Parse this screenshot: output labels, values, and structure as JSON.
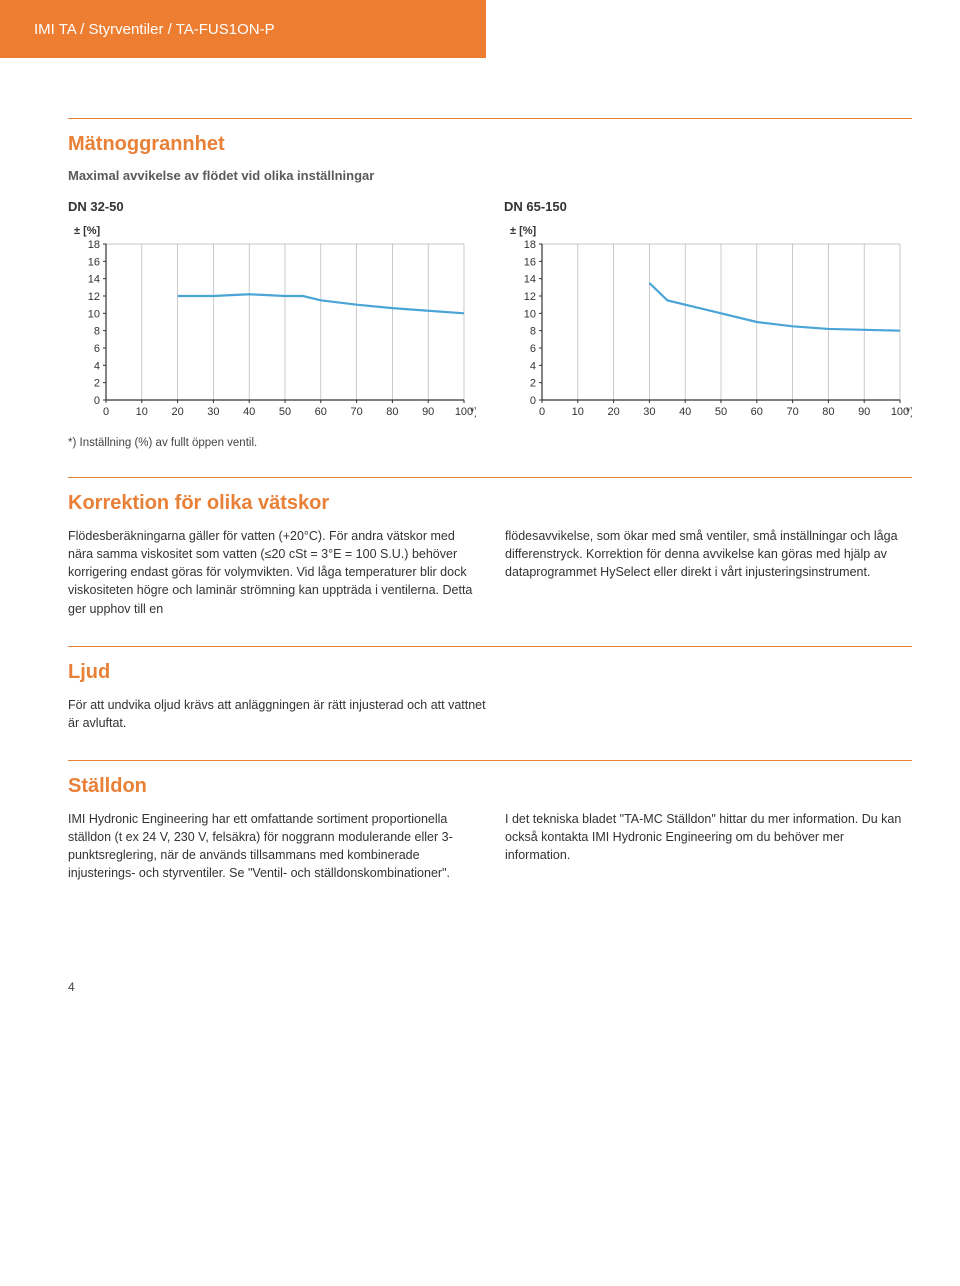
{
  "header": {
    "breadcrumb": "IMI TA / Styrventiler / TA-FUS1ON-P"
  },
  "section_matnoggrannhet": {
    "title": "Mätnoggrannhet",
    "subtitle": "Maximal avvikelse av flödet vid olika inställningar",
    "footnote": "*) Inställning (%) av fullt öppen ventil.",
    "chart1": {
      "type": "line",
      "label": "DN 32-50",
      "y_label": "±  [%]",
      "x_ticks": [
        "0",
        "10",
        "20",
        "30",
        "40",
        "50",
        "60",
        "70",
        "80",
        "90",
        "100",
        "*)"
      ],
      "y_ticks": [
        0,
        2,
        4,
        6,
        8,
        10,
        12,
        14,
        16,
        18
      ],
      "ylim": [
        0,
        18
      ],
      "xlim": [
        0,
        100
      ],
      "line_color": "#4aa5d6",
      "line_width": 2.2,
      "grid_color": "#b5b5b5",
      "axis_color": "#333333",
      "tick_fontsize": 11,
      "background_color": "#ffffff",
      "data": [
        {
          "x": 20,
          "y": 12
        },
        {
          "x": 30,
          "y": 12
        },
        {
          "x": 40,
          "y": 12.2
        },
        {
          "x": 50,
          "y": 12
        },
        {
          "x": 55,
          "y": 12
        },
        {
          "x": 60,
          "y": 11.5
        },
        {
          "x": 70,
          "y": 11
        },
        {
          "x": 80,
          "y": 10.6
        },
        {
          "x": 90,
          "y": 10.3
        },
        {
          "x": 100,
          "y": 10
        }
      ]
    },
    "chart2": {
      "type": "line",
      "label": "DN 65-150",
      "y_label": "±  [%]",
      "x_ticks": [
        "0",
        "10",
        "20",
        "30",
        "40",
        "50",
        "60",
        "70",
        "80",
        "90",
        "100",
        "*)"
      ],
      "y_ticks": [
        0,
        2,
        4,
        6,
        8,
        10,
        12,
        14,
        16,
        18
      ],
      "ylim": [
        0,
        18
      ],
      "xlim": [
        0,
        100
      ],
      "line_color": "#4aa5d6",
      "line_width": 2.2,
      "grid_color": "#b5b5b5",
      "axis_color": "#333333",
      "tick_fontsize": 11,
      "background_color": "#ffffff",
      "data": [
        {
          "x": 30,
          "y": 13.5
        },
        {
          "x": 35,
          "y": 11.5
        },
        {
          "x": 40,
          "y": 11
        },
        {
          "x": 50,
          "y": 10
        },
        {
          "x": 60,
          "y": 9
        },
        {
          "x": 70,
          "y": 8.5
        },
        {
          "x": 80,
          "y": 8.2
        },
        {
          "x": 90,
          "y": 8.1
        },
        {
          "x": 100,
          "y": 8
        }
      ]
    }
  },
  "section_korrektion": {
    "title": "Korrektion för olika vätskor",
    "col1": "Flödesberäkningarna gäller för vatten (+20°C). För andra vätskor med nära samma viskositet som vatten (≤20 cSt = 3°E = 100 S.U.) behöver korrigering endast göras för volymvikten. Vid låga temperaturer blir dock viskositeten högre och laminär strömning kan uppträda i ventilerna. Detta ger upphov till en",
    "col2": "flödesavvikelse, som ökar med små ventiler, små inställningar och låga differenstryck. Korrektion för denna avvikelse kan göras med hjälp av dataprogrammet HySelect eller direkt i vårt injusteringsinstrument."
  },
  "section_ljud": {
    "title": "Ljud",
    "body": "För att undvika oljud krävs att anläggningen är rätt injusterad och att vattnet är avluftat."
  },
  "section_stalldon": {
    "title": "Ställdon",
    "col1": "IMI Hydronic Engineering har ett omfattande sortiment proportionella ställdon (t ex 24 V, 230 V, felsäkra) för noggrann modulerande eller 3-punktsreglering, när de används tillsammans med kombinerade injusterings- och styrventiler. Se \"Ventil- och ställdonskombinationer\".",
    "col2": "I det tekniska bladet \"TA-MC Ställdon\" hittar du mer information. Du kan också kontakta IMI Hydronic Engineering om du behöver mer information."
  },
  "page_number": "4"
}
